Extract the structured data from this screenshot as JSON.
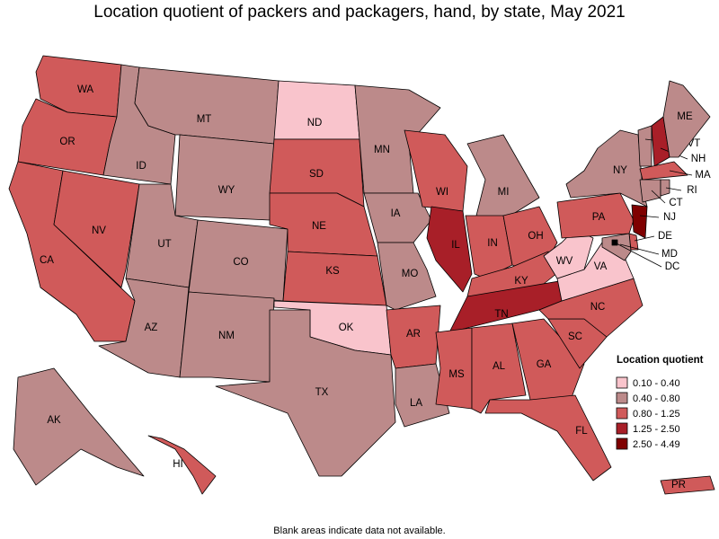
{
  "title": "Location quotient of packers and packagers, hand, by state, May 2021",
  "legend": {
    "title": "Location quotient",
    "items": [
      {
        "label": "0.10 - 0.40",
        "color": "#f9c4cc"
      },
      {
        "label": "0.40 - 0.80",
        "color": "#bc8a8a"
      },
      {
        "label": "0.80 - 1.25",
        "color": "#d05a5a"
      },
      {
        "label": "1.25 - 2.50",
        "color": "#a81f28"
      },
      {
        "label": "2.50 - 4.49",
        "color": "#7f0000"
      }
    ]
  },
  "states": [
    {
      "abbr": "WA",
      "color": "#d05a5a"
    },
    {
      "abbr": "OR",
      "color": "#d05a5a"
    },
    {
      "abbr": "CA",
      "color": "#d05a5a"
    },
    {
      "abbr": "NV",
      "color": "#d05a5a"
    },
    {
      "abbr": "ID",
      "color": "#bc8a8a"
    },
    {
      "abbr": "MT",
      "color": "#bc8a8a"
    },
    {
      "abbr": "WY",
      "color": "#bc8a8a"
    },
    {
      "abbr": "UT",
      "color": "#bc8a8a"
    },
    {
      "abbr": "CO",
      "color": "#bc8a8a"
    },
    {
      "abbr": "AZ",
      "color": "#bc8a8a"
    },
    {
      "abbr": "NM",
      "color": "#bc8a8a"
    },
    {
      "abbr": "ND",
      "color": "#f9c4cc"
    },
    {
      "abbr": "SD",
      "color": "#d05a5a"
    },
    {
      "abbr": "NE",
      "color": "#d05a5a"
    },
    {
      "abbr": "KS",
      "color": "#d05a5a"
    },
    {
      "abbr": "OK",
      "color": "#f9c4cc"
    },
    {
      "abbr": "TX",
      "color": "#bc8a8a"
    },
    {
      "abbr": "MN",
      "color": "#bc8a8a"
    },
    {
      "abbr": "IA",
      "color": "#bc8a8a"
    },
    {
      "abbr": "MO",
      "color": "#bc8a8a"
    },
    {
      "abbr": "AR",
      "color": "#d05a5a"
    },
    {
      "abbr": "LA",
      "color": "#bc8a8a"
    },
    {
      "abbr": "WI",
      "color": "#d05a5a"
    },
    {
      "abbr": "IL",
      "color": "#a81f28"
    },
    {
      "abbr": "MI",
      "color": "#bc8a8a"
    },
    {
      "abbr": "IN",
      "color": "#d05a5a"
    },
    {
      "abbr": "OH",
      "color": "#d05a5a"
    },
    {
      "abbr": "KY",
      "color": "#d05a5a"
    },
    {
      "abbr": "TN",
      "color": "#a81f28"
    },
    {
      "abbr": "MS",
      "color": "#d05a5a"
    },
    {
      "abbr": "AL",
      "color": "#d05a5a"
    },
    {
      "abbr": "GA",
      "color": "#d05a5a"
    },
    {
      "abbr": "FL",
      "color": "#d05a5a"
    },
    {
      "abbr": "SC",
      "color": "#d05a5a"
    },
    {
      "abbr": "NC",
      "color": "#d05a5a"
    },
    {
      "abbr": "VA",
      "color": "#f9c4cc"
    },
    {
      "abbr": "WV",
      "color": "#f9c4cc"
    },
    {
      "abbr": "PA",
      "color": "#d05a5a"
    },
    {
      "abbr": "NY",
      "color": "#bc8a8a"
    },
    {
      "abbr": "VT",
      "color": "#bc8a8a"
    },
    {
      "abbr": "NH",
      "color": "#a81f28"
    },
    {
      "abbr": "ME",
      "color": "#bc8a8a"
    },
    {
      "abbr": "MA",
      "color": "#d05a5a"
    },
    {
      "abbr": "CT",
      "color": "#bc8a8a"
    },
    {
      "abbr": "RI",
      "color": "#bc8a8a"
    },
    {
      "abbr": "NJ",
      "color": "#7f0000"
    },
    {
      "abbr": "DE",
      "color": "#d05a5a"
    },
    {
      "abbr": "MD",
      "color": "#bc8a8a"
    },
    {
      "abbr": "DC",
      "color": "#000000"
    },
    {
      "abbr": "AK",
      "color": "#bc8a8a"
    },
    {
      "abbr": "HI",
      "color": "#d05a5a"
    },
    {
      "abbr": "PR",
      "color": "#d05a5a"
    }
  ],
  "footnote": "Blank areas indicate data not available."
}
